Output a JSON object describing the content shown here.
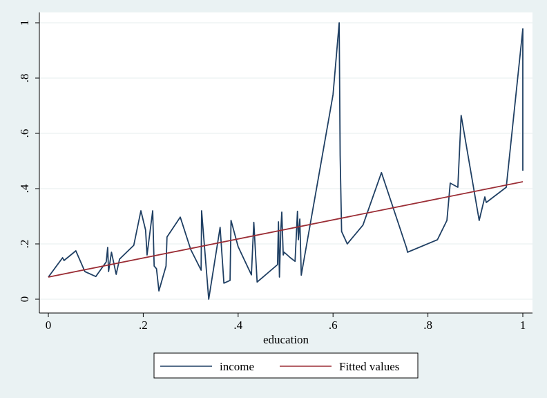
{
  "chart_data": {
    "type": "line",
    "title": "",
    "xlabel": "education",
    "ylabel": "",
    "xlim": [
      0,
      1
    ],
    "ylim": [
      0,
      1
    ],
    "x_ticks": [
      0,
      0.2,
      0.4,
      0.6,
      0.8,
      1
    ],
    "x_tick_labels": [
      "0",
      ".2",
      ".4",
      ".6",
      ".8",
      "1"
    ],
    "y_ticks": [
      0,
      0.2,
      0.4,
      0.6,
      0.8,
      1
    ],
    "y_tick_labels": [
      "0",
      ".2",
      ".4",
      ".6",
      ".8",
      "1"
    ],
    "grid": true,
    "legend_position": "bottom",
    "series": [
      {
        "name": "income",
        "color": "#1f3f63",
        "x": [
          0,
          0.03,
          0.033,
          0.058,
          0.077,
          0.1,
          0.122,
          0.125,
          0.127,
          0.133,
          0.143,
          0.15,
          0.18,
          0.195,
          0.205,
          0.208,
          0.22,
          0.223,
          0.228,
          0.233,
          0.248,
          0.25,
          0.278,
          0.3,
          0.322,
          0.323,
          0.338,
          0.362,
          0.37,
          0.383,
          0.385,
          0.4,
          0.428,
          0.433,
          0.44,
          0.483,
          0.485,
          0.487,
          0.49,
          0.492,
          0.495,
          0.497,
          0.51,
          0.52,
          0.525,
          0.527,
          0.53,
          0.533,
          0.6,
          0.613,
          0.615,
          0.618,
          0.63,
          0.663,
          0.702,
          0.755,
          0.757,
          0.81,
          0.82,
          0.84,
          0.847,
          0.863,
          0.87,
          0.908,
          0.92,
          0.923,
          0.965,
          1.0,
          1.0
        ],
        "y": [
          0.08,
          0.15,
          0.14,
          0.175,
          0.1,
          0.082,
          0.135,
          0.187,
          0.1,
          0.17,
          0.09,
          0.145,
          0.195,
          0.32,
          0.25,
          0.16,
          0.32,
          0.12,
          0.11,
          0.03,
          0.12,
          0.225,
          0.297,
          0.18,
          0.105,
          0.32,
          0.0,
          0.26,
          0.058,
          0.068,
          0.285,
          0.19,
          0.088,
          0.278,
          0.062,
          0.125,
          0.28,
          0.08,
          0.25,
          0.315,
          0.16,
          0.17,
          0.15,
          0.137,
          0.318,
          0.215,
          0.29,
          0.087,
          0.74,
          1.0,
          0.52,
          0.245,
          0.2,
          0.268,
          0.458,
          0.185,
          0.17,
          0.208,
          0.215,
          0.285,
          0.42,
          0.405,
          0.665,
          0.285,
          0.37,
          0.35,
          0.405,
          0.978,
          0.465
        ]
      },
      {
        "name": "Fitted values",
        "color": "#9b2d35",
        "x": [
          0,
          1
        ],
        "y": [
          0.08,
          0.425
        ]
      }
    ]
  }
}
